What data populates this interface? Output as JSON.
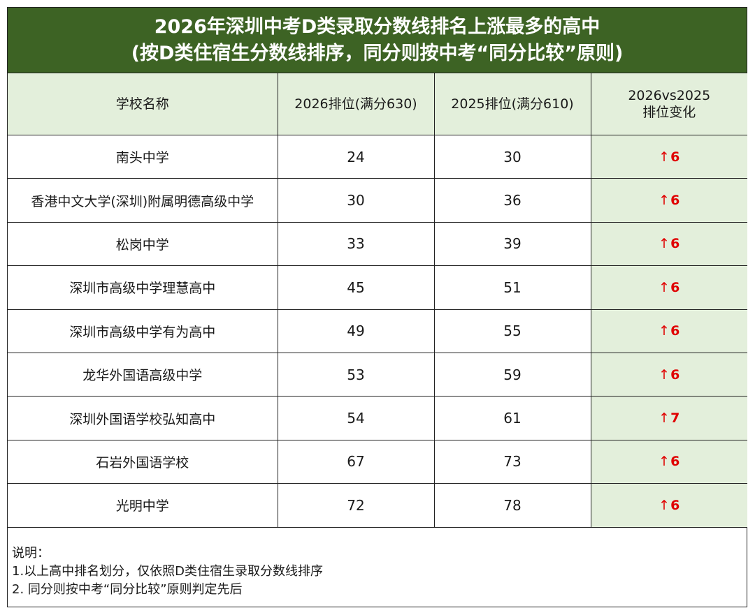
{
  "title": {
    "line1": "2026年深圳中考D类录取分数线排名上涨最多的高中",
    "line2": "(按D类住宿生分数线排序，同分则按中考“同分比较”原则)"
  },
  "colors": {
    "title_bg": "#3d6324",
    "header_bg": "#e3efdb",
    "change_color": "#e00000"
  },
  "chart_data": {
    "type": "table",
    "columns": [
      "学校名称",
      "2026排位(满分630)",
      "2025排位(满分610)",
      "2026vs2025 排位变化"
    ],
    "header_labels": {
      "school": "学校名称",
      "rank2026": "2026排位(满分630)",
      "rank2025": "2025排位(满分610)",
      "change_line1": "2026vs2025",
      "change_line2": "排位变化"
    },
    "rows": [
      {
        "school": "南头中学",
        "rank2026": "24",
        "rank2025": "30",
        "change": "6"
      },
      {
        "school": "香港中文大学(深圳)附属明德高级中学",
        "rank2026": "30",
        "rank2025": "36",
        "change": "6"
      },
      {
        "school": "松岗中学",
        "rank2026": "33",
        "rank2025": "39",
        "change": "6"
      },
      {
        "school": "深圳市高级中学理慧高中",
        "rank2026": "45",
        "rank2025": "51",
        "change": "6"
      },
      {
        "school": "深圳市高级中学有为高中",
        "rank2026": "49",
        "rank2025": "55",
        "change": "6"
      },
      {
        "school": "龙华外国语高级中学",
        "rank2026": "53",
        "rank2025": "59",
        "change": "6"
      },
      {
        "school": "深圳外国语学校弘知高中",
        "rank2026": "54",
        "rank2025": "61",
        "change": "7"
      },
      {
        "school": "石岩外国语学校",
        "rank2026": "67",
        "rank2025": "73",
        "change": "6"
      },
      {
        "school": "光明中学",
        "rank2026": "72",
        "rank2025": "78",
        "change": "6"
      }
    ],
    "change_arrow": "↑"
  },
  "notes": {
    "heading": "说明：",
    "line1": "1.以上高中排名划分，仅依照D类住宿生录取分数线排序",
    "line2": "2. 同分则按中考“同分比较”原则判定先后"
  }
}
